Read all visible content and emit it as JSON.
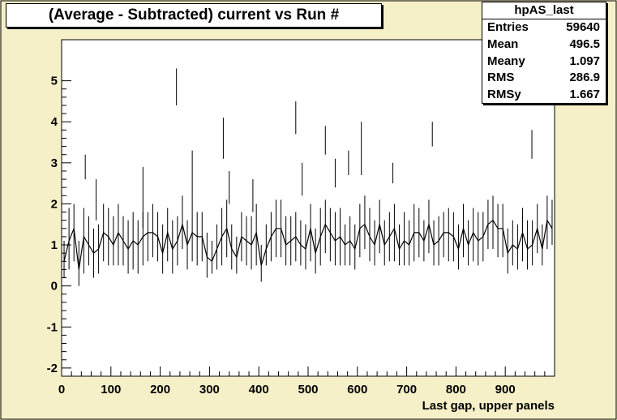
{
  "chart_data": {
    "type": "line",
    "title": "(Average - Subtracted) current vs Run #",
    "xlabel": "Last gap, upper panels",
    "ylabel": "",
    "xlim": [
      0,
      1000
    ],
    "ylim": [
      -2.2,
      6
    ],
    "x_ticks": [
      0,
      100,
      200,
      300,
      400,
      500,
      600,
      700,
      800,
      900
    ],
    "y_ticks": [
      -2,
      -1,
      0,
      1,
      2,
      3,
      4,
      5
    ],
    "grid": false,
    "legend": "none",
    "series_color": "#000000",
    "series": [
      {
        "x": [
          0,
          10,
          20,
          30,
          40,
          50,
          60,
          70,
          80,
          90,
          100,
          110,
          120,
          130,
          140,
          150,
          160,
          170,
          180,
          190,
          200,
          210,
          220,
          230,
          240,
          250,
          260,
          270,
          280,
          290,
          300,
          310,
          320,
          330,
          340,
          350,
          360,
          370,
          380,
          390,
          400,
          410,
          420,
          430,
          440,
          450,
          460,
          470,
          480,
          490,
          500,
          510,
          520,
          530,
          540,
          550,
          560,
          570,
          580,
          590,
          600,
          610,
          620,
          630,
          640,
          650,
          660,
          670,
          680,
          690,
          700,
          710,
          720,
          730,
          740,
          750,
          760,
          770,
          780,
          790,
          800,
          810,
          820,
          830,
          840,
          850,
          860,
          870,
          880,
          890,
          900,
          910,
          920,
          930,
          940,
          950,
          960,
          970,
          980,
          990
        ],
        "y": [
          0.6,
          1.1,
          1.4,
          0.4,
          1.2,
          1.0,
          0.8,
          0.9,
          1.3,
          1.2,
          1.0,
          1.3,
          1.1,
          0.9,
          1.1,
          1.0,
          1.2,
          1.3,
          1.3,
          1.2,
          0.8,
          1.3,
          0.9,
          1.1,
          1.5,
          1.0,
          1.3,
          1.2,
          1.2,
          0.7,
          0.6,
          0.9,
          1.2,
          1.4,
          0.9,
          0.7,
          1.2,
          1.1,
          1.0,
          1.3,
          0.5,
          0.9,
          1.2,
          1.4,
          1.4,
          1.0,
          1.1,
          1.2,
          1.0,
          0.9,
          1.4,
          0.8,
          1.2,
          1.5,
          1.3,
          1.1,
          1.2,
          1.0,
          1.1,
          0.9,
          1.4,
          1.5,
          1.2,
          1.0,
          1.5,
          1.0,
          1.2,
          1.4,
          0.9,
          1.1,
          1.0,
          1.3,
          1.3,
          1.1,
          1.5,
          1.0,
          1.1,
          1.3,
          1.3,
          1.2,
          0.9,
          1.4,
          1.0,
          1.3,
          1.1,
          1.2,
          1.5,
          1.6,
          1.4,
          1.4,
          0.8,
          1.0,
          0.9,
          1.3,
          0.9,
          1.0,
          1.4,
          0.9,
          1.6,
          1.4
        ],
        "low": [
          0.2,
          0.4,
          0.6,
          0.0,
          0.3,
          0.5,
          0.2,
          0.3,
          0.6,
          0.5,
          0.5,
          0.5,
          0.5,
          0.3,
          0.4,
          0.3,
          0.5,
          0.6,
          0.7,
          0.6,
          0.3,
          0.6,
          0.3,
          0.5,
          0.9,
          0.4,
          0.6,
          0.5,
          0.6,
          0.2,
          0.3,
          0.4,
          0.5,
          0.7,
          0.4,
          0.3,
          0.6,
          0.5,
          0.4,
          0.5,
          0.1,
          0.5,
          0.6,
          0.7,
          0.7,
          0.5,
          0.5,
          0.6,
          0.5,
          0.4,
          0.6,
          0.3,
          0.5,
          0.8,
          0.6,
          0.5,
          0.5,
          0.5,
          0.5,
          0.4,
          0.7,
          0.9,
          0.6,
          0.5,
          0.8,
          0.5,
          0.6,
          0.6,
          0.5,
          0.5,
          0.5,
          0.6,
          0.7,
          0.6,
          0.8,
          0.5,
          0.5,
          0.7,
          0.6,
          0.6,
          0.4,
          0.7,
          0.5,
          0.6,
          0.5,
          0.6,
          0.9,
          0.9,
          0.7,
          0.7,
          0.3,
          0.5,
          0.4,
          0.6,
          0.4,
          0.5,
          0.8,
          0.5,
          0.9,
          1.0
        ],
        "high": [
          1.1,
          1.9,
          2.0,
          1.1,
          1.9,
          1.7,
          1.4,
          1.5,
          2.0,
          1.9,
          1.7,
          2.0,
          1.7,
          1.6,
          1.8,
          1.6,
          1.8,
          1.8,
          2.0,
          1.8,
          1.5,
          1.9,
          1.6,
          1.7,
          2.2,
          1.6,
          2.1,
          1.8,
          1.8,
          1.3,
          1.1,
          1.5,
          1.9,
          2.1,
          1.5,
          1.2,
          1.8,
          1.7,
          1.7,
          2.0,
          1.0,
          1.5,
          1.8,
          2.1,
          2.1,
          1.7,
          1.7,
          1.8,
          1.6,
          1.5,
          2.0,
          1.4,
          1.9,
          2.1,
          1.9,
          1.8,
          1.9,
          1.5,
          1.7,
          1.5,
          2.0,
          2.2,
          1.9,
          1.6,
          2.1,
          1.6,
          1.8,
          2.0,
          1.5,
          1.8,
          1.6,
          2.0,
          1.9,
          1.6,
          2.1,
          1.6,
          1.7,
          1.8,
          1.9,
          1.8,
          1.5,
          2.0,
          1.6,
          1.9,
          1.8,
          1.8,
          2.1,
          2.2,
          2.0,
          2.0,
          1.4,
          1.6,
          1.5,
          1.9,
          1.6,
          1.6,
          2.0,
          1.5,
          2.2,
          2.1
        ],
        "spikes": [
          [
            48,
            2.6,
            3.2
          ],
          [
            70,
            1.6,
            2.6
          ],
          [
            165,
            1.4,
            2.9
          ],
          [
            233,
            4.4,
            5.3
          ],
          [
            265,
            2.1,
            3.3
          ],
          [
            328,
            3.1,
            4.1
          ],
          [
            340,
            2.0,
            2.8
          ],
          [
            388,
            1.8,
            2.6
          ],
          [
            475,
            3.7,
            4.5
          ],
          [
            488,
            2.2,
            3.0
          ],
          [
            535,
            3.2,
            3.9
          ],
          [
            555,
            2.4,
            3.1
          ],
          [
            582,
            2.7,
            3.3
          ],
          [
            608,
            2.7,
            4.0
          ],
          [
            672,
            2.5,
            3.0
          ],
          [
            752,
            3.4,
            4.0
          ],
          [
            954,
            3.1,
            3.8
          ]
        ]
      }
    ]
  },
  "stats": {
    "title": "hpAS_last",
    "rows": [
      {
        "label": "Entries",
        "value": "59640"
      },
      {
        "label": "Mean",
        "value": "496.5"
      },
      {
        "label": "Meany",
        "value": "1.097"
      },
      {
        "label": "RMS",
        "value": "286.9"
      },
      {
        "label": "RMSy",
        "value": "1.667"
      }
    ]
  }
}
